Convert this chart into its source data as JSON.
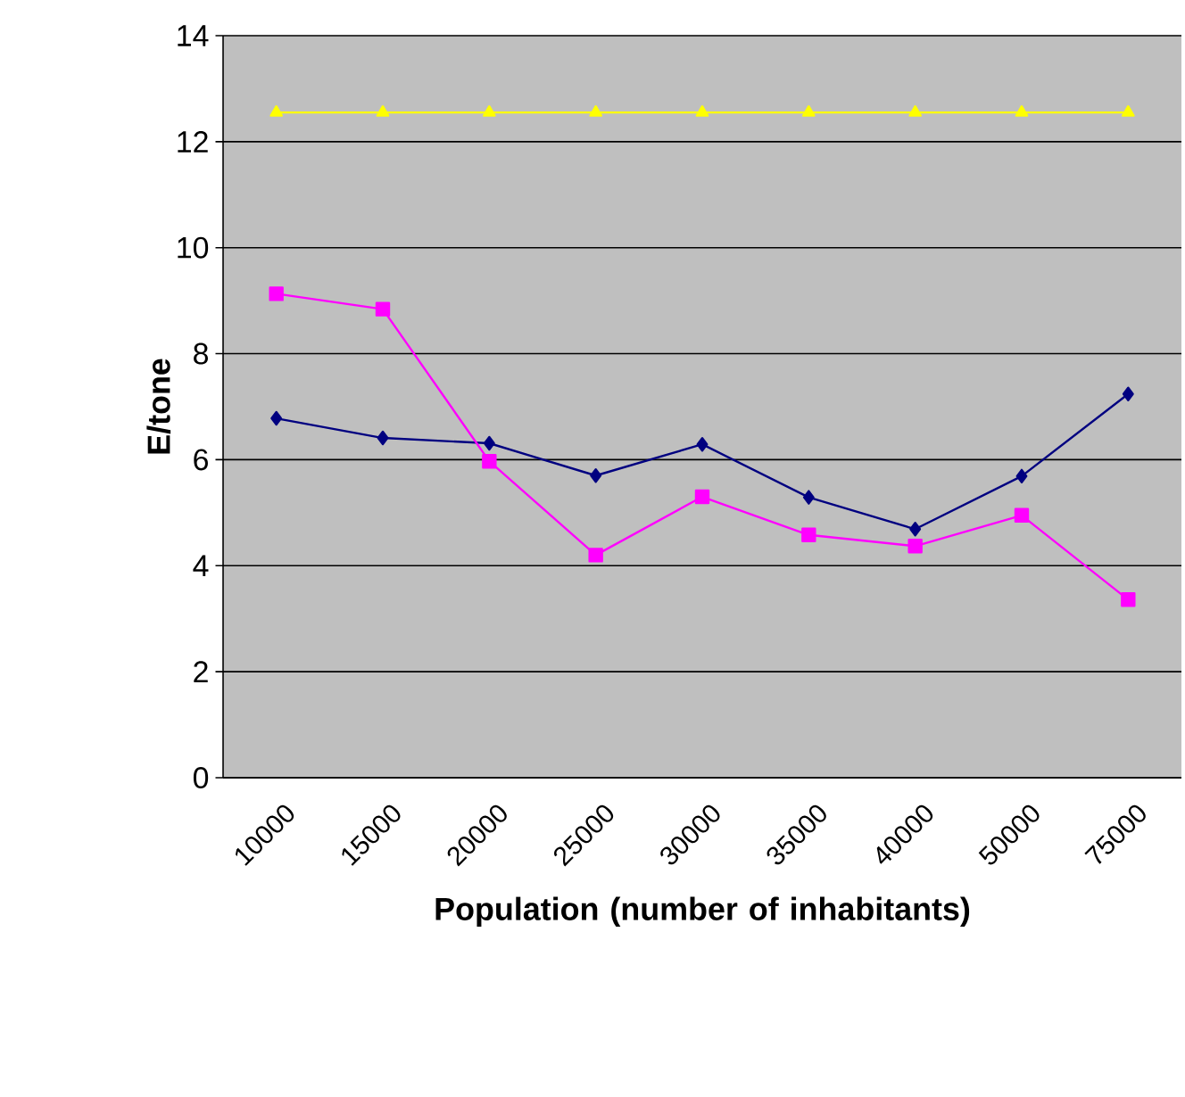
{
  "chart_data": {
    "type": "line",
    "xlabel": "Population (number of inhabitants)",
    "ylabel": "E/tone",
    "categories": [
      "10000",
      "15000",
      "20000",
      "25000",
      "30000",
      "35000",
      "40000",
      "50000",
      "75000"
    ],
    "series": [
      {
        "color": "#000080",
        "marker": "diamond",
        "values": [
          6.78,
          6.41,
          6.31,
          5.7,
          6.29,
          5.29,
          4.69,
          5.69,
          7.24
        ]
      },
      {
        "color": "#ff00ff",
        "marker": "square",
        "values": [
          9.13,
          8.84,
          5.97,
          4.2,
          5.3,
          4.58,
          4.37,
          4.95,
          3.36
        ]
      },
      {
        "color": "#ffff00",
        "marker": "triangle",
        "values": [
          12.55,
          12.55,
          12.55,
          12.55,
          12.55,
          12.55,
          12.55,
          12.55,
          12.55
        ]
      }
    ],
    "ylim": [
      0,
      14
    ],
    "yticks": [
      0,
      2,
      4,
      6,
      8,
      10,
      12,
      14
    ],
    "grid": "y"
  }
}
